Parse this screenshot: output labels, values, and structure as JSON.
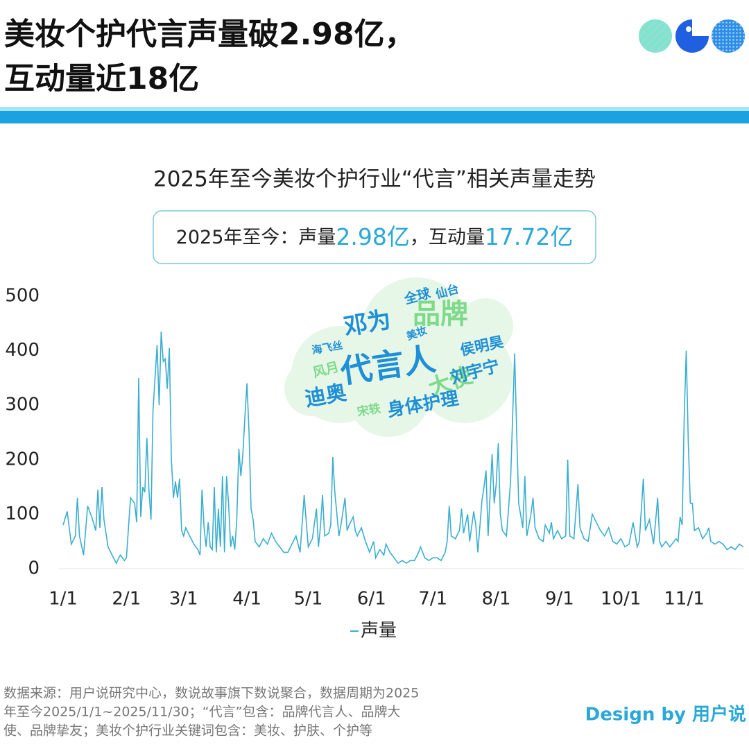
{
  "header": {
    "title_lines": [
      "美妆个护代言声量破2.98亿，",
      "互动量近18亿"
    ]
  },
  "chart_data": {
    "type": "line",
    "title": "2025年至今美妆个护行业“代言”相关声量走势",
    "summary": [
      "2025年至今：声量",
      "2.98亿",
      "，互动量",
      "17.72亿"
    ],
    "x": [
      0,
      2,
      4,
      6,
      7,
      8,
      10,
      12,
      14,
      16,
      17,
      18,
      19,
      20,
      22,
      24,
      26,
      28,
      30,
      31,
      33,
      35,
      36,
      37,
      38,
      39,
      40,
      41,
      42,
      43,
      44,
      46,
      47,
      48,
      49,
      50,
      51,
      52,
      53,
      54,
      55,
      56,
      57,
      58,
      59,
      60,
      62,
      64,
      66,
      67,
      68,
      69,
      70,
      71,
      72,
      73,
      74,
      75,
      76,
      77,
      78,
      79,
      80,
      81,
      82,
      83,
      84,
      85,
      86,
      87,
      88,
      89,
      90,
      91,
      92,
      93,
      94,
      96,
      98,
      100,
      102,
      104,
      106,
      108,
      110,
      112,
      114,
      116,
      118,
      120,
      122,
      124,
      125,
      126,
      127,
      128,
      130,
      131,
      132,
      133,
      134,
      135,
      136,
      138,
      139,
      140,
      142,
      143,
      144,
      146,
      148,
      150,
      152,
      153,
      155,
      157,
      158,
      160,
      162,
      164,
      166,
      168,
      170,
      172,
      174,
      175,
      177,
      179,
      181,
      183,
      185,
      187,
      188,
      189,
      190,
      192,
      194,
      195,
      196,
      198,
      199,
      201,
      202,
      203,
      205,
      206,
      207,
      208,
      210,
      211,
      212,
      213,
      214,
      215,
      217,
      219,
      221,
      222,
      223,
      225,
      226,
      227,
      229,
      230,
      231,
      233,
      235,
      236,
      238,
      239,
      240,
      242,
      244,
      246,
      247,
      248,
      250,
      252,
      253,
      255,
      257,
      259,
      261,
      263,
      265,
      267,
      269,
      271,
      273,
      275,
      277,
      279,
      281,
      282,
      284,
      285,
      287,
      289,
      291,
      292,
      293,
      295,
      297,
      299,
      300,
      301,
      302,
      303,
      304,
      305,
      306,
      307,
      308,
      309,
      311,
      313,
      315,
      316,
      317,
      319,
      321,
      323,
      325,
      327,
      329,
      331,
      333
    ],
    "series": [
      {
        "name": "声量",
        "color": "#3aaed0",
        "values": [
          80,
          105,
          45,
          60,
          130,
          60,
          25,
          115,
          95,
          70,
          145,
          75,
          150,
          90,
          40,
          25,
          10,
          25,
          15,
          20,
          130,
          120,
          85,
          350,
          95,
          150,
          140,
          240,
          145,
          90,
          290,
          410,
          300,
          435,
          380,
          385,
          330,
          405,
          200,
          130,
          160,
          130,
          165,
          70,
          60,
          75,
          60,
          45,
          35,
          25,
          145,
          75,
          40,
          85,
          40,
          35,
          150,
          30,
          110,
          40,
          170,
          30,
          170,
          120,
          40,
          60,
          35,
          90,
          220,
          170,
          210,
          280,
          340,
          250,
          110,
          90,
          50,
          40,
          55,
          45,
          65,
          50,
          40,
          30,
          30,
          45,
          60,
          30,
          135,
          40,
          55,
          110,
          40,
          80,
          135,
          60,
          65,
          80,
          205,
          140,
          100,
          60,
          80,
          130,
          70,
          80,
          95,
          70,
          60,
          75,
          50,
          30,
          50,
          20,
          35,
          25,
          45,
          30,
          20,
          10,
          15,
          10,
          15,
          15,
          30,
          40,
          20,
          15,
          20,
          20,
          15,
          30,
          50,
          115,
          60,
          55,
          70,
          110,
          65,
          100,
          50,
          105,
          80,
          30,
          125,
          150,
          180,
          60,
          210,
          120,
          155,
          230,
          100,
          70,
          60,
          160,
          395,
          250,
          120,
          75,
          170,
          60,
          100,
          130,
          75,
          55,
          50,
          80,
          65,
          85,
          55,
          70,
          55,
          60,
          200,
          60,
          55,
          155,
          75,
          55,
          50,
          100,
          85,
          70,
          60,
          75,
          50,
          45,
          55,
          40,
          45,
          85,
          40,
          50,
          165,
          70,
          90,
          45,
          130,
          50,
          40,
          50,
          40,
          50,
          55,
          50,
          95,
          80,
          280,
          400,
          230,
          120,
          120,
          70,
          75,
          55,
          65,
          75,
          50,
          45,
          50,
          45,
          35,
          40,
          35,
          45,
          40
        ]
      }
    ],
    "xlim": [
      0,
      333
    ],
    "xticks": [
      {
        "value": 0,
        "label": "1/1"
      },
      {
        "value": 31,
        "label": "2/1"
      },
      {
        "value": 59,
        "label": "3/1"
      },
      {
        "value": 90,
        "label": "4/1"
      },
      {
        "value": 120,
        "label": "5/1"
      },
      {
        "value": 151,
        "label": "6/1"
      },
      {
        "value": 181,
        "label": "7/1"
      },
      {
        "value": 212,
        "label": "8/1"
      },
      {
        "value": 243,
        "label": "9/1"
      },
      {
        "value": 273,
        "label": "10/1"
      },
      {
        "value": 304,
        "label": "11/1"
      }
    ],
    "ylim": [
      0,
      500
    ],
    "yticks": [
      0,
      100,
      200,
      300,
      400,
      500
    ],
    "word_cloud": [
      "代言人",
      "品牌",
      "邓为",
      "大使",
      "迪奥",
      "身体护理",
      "刘宇宁",
      "侯明昊",
      "全球",
      "仙台",
      "风月",
      "美妆",
      "海飞丝",
      "宋轶"
    ]
  },
  "footer": {
    "source_lines": [
      "数据来源：用户说研究中心，数说故事旗下数说聚合，数据周期为2025",
      "年至今2025/1/1~2025/11/30；“代言”包含：品牌代言人、品牌大",
      "使、品牌挚友；美妆个护行业关键词包含：美妆、护肤、个护等"
    ],
    "credit": "Design by 用户说"
  }
}
